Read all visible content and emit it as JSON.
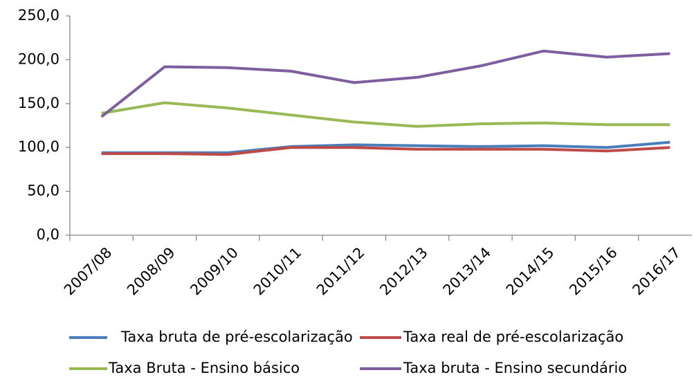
{
  "chart_data": {
    "type": "line",
    "categories": [
      "2007/08",
      "2008/09",
      "2009/10",
      "2010/11",
      "2011/12",
      "2012/13",
      "2013/14",
      "2014/15",
      "2015/16",
      "2016/17"
    ],
    "series": [
      {
        "name": "Taxa bruta de pré-escolarização",
        "color": "#4a7ebb",
        "values": [
          94,
          94,
          94,
          101,
          103,
          102,
          101,
          102,
          100,
          106
        ]
      },
      {
        "name": "Taxa real de pré-escolarização",
        "color": "#be4b48",
        "values": [
          93,
          93,
          92,
          100,
          100,
          98,
          98,
          98,
          96,
          100
        ]
      },
      {
        "name": "Taxa Bruta - Ensino básico",
        "color": "#98b954",
        "values": [
          139,
          151,
          145,
          137,
          129,
          124,
          127,
          128,
          126,
          126
        ]
      },
      {
        "name": "Taxa bruta - Ensino secundário",
        "color": "#7d5fa0",
        "values": [
          135,
          192,
          191,
          187,
          174,
          180,
          193,
          210,
          203,
          207
        ]
      }
    ],
    "ylim": [
      0,
      250
    ],
    "yticks": [
      {
        "value": 0,
        "label": "0,0"
      },
      {
        "value": 50,
        "label": "50,0"
      },
      {
        "value": 100,
        "label": "100,0"
      },
      {
        "value": 150,
        "label": "150,0"
      },
      {
        "value": 200,
        "label": "200,0"
      },
      {
        "value": 250,
        "label": "250,0"
      }
    ],
    "grid": false
  }
}
